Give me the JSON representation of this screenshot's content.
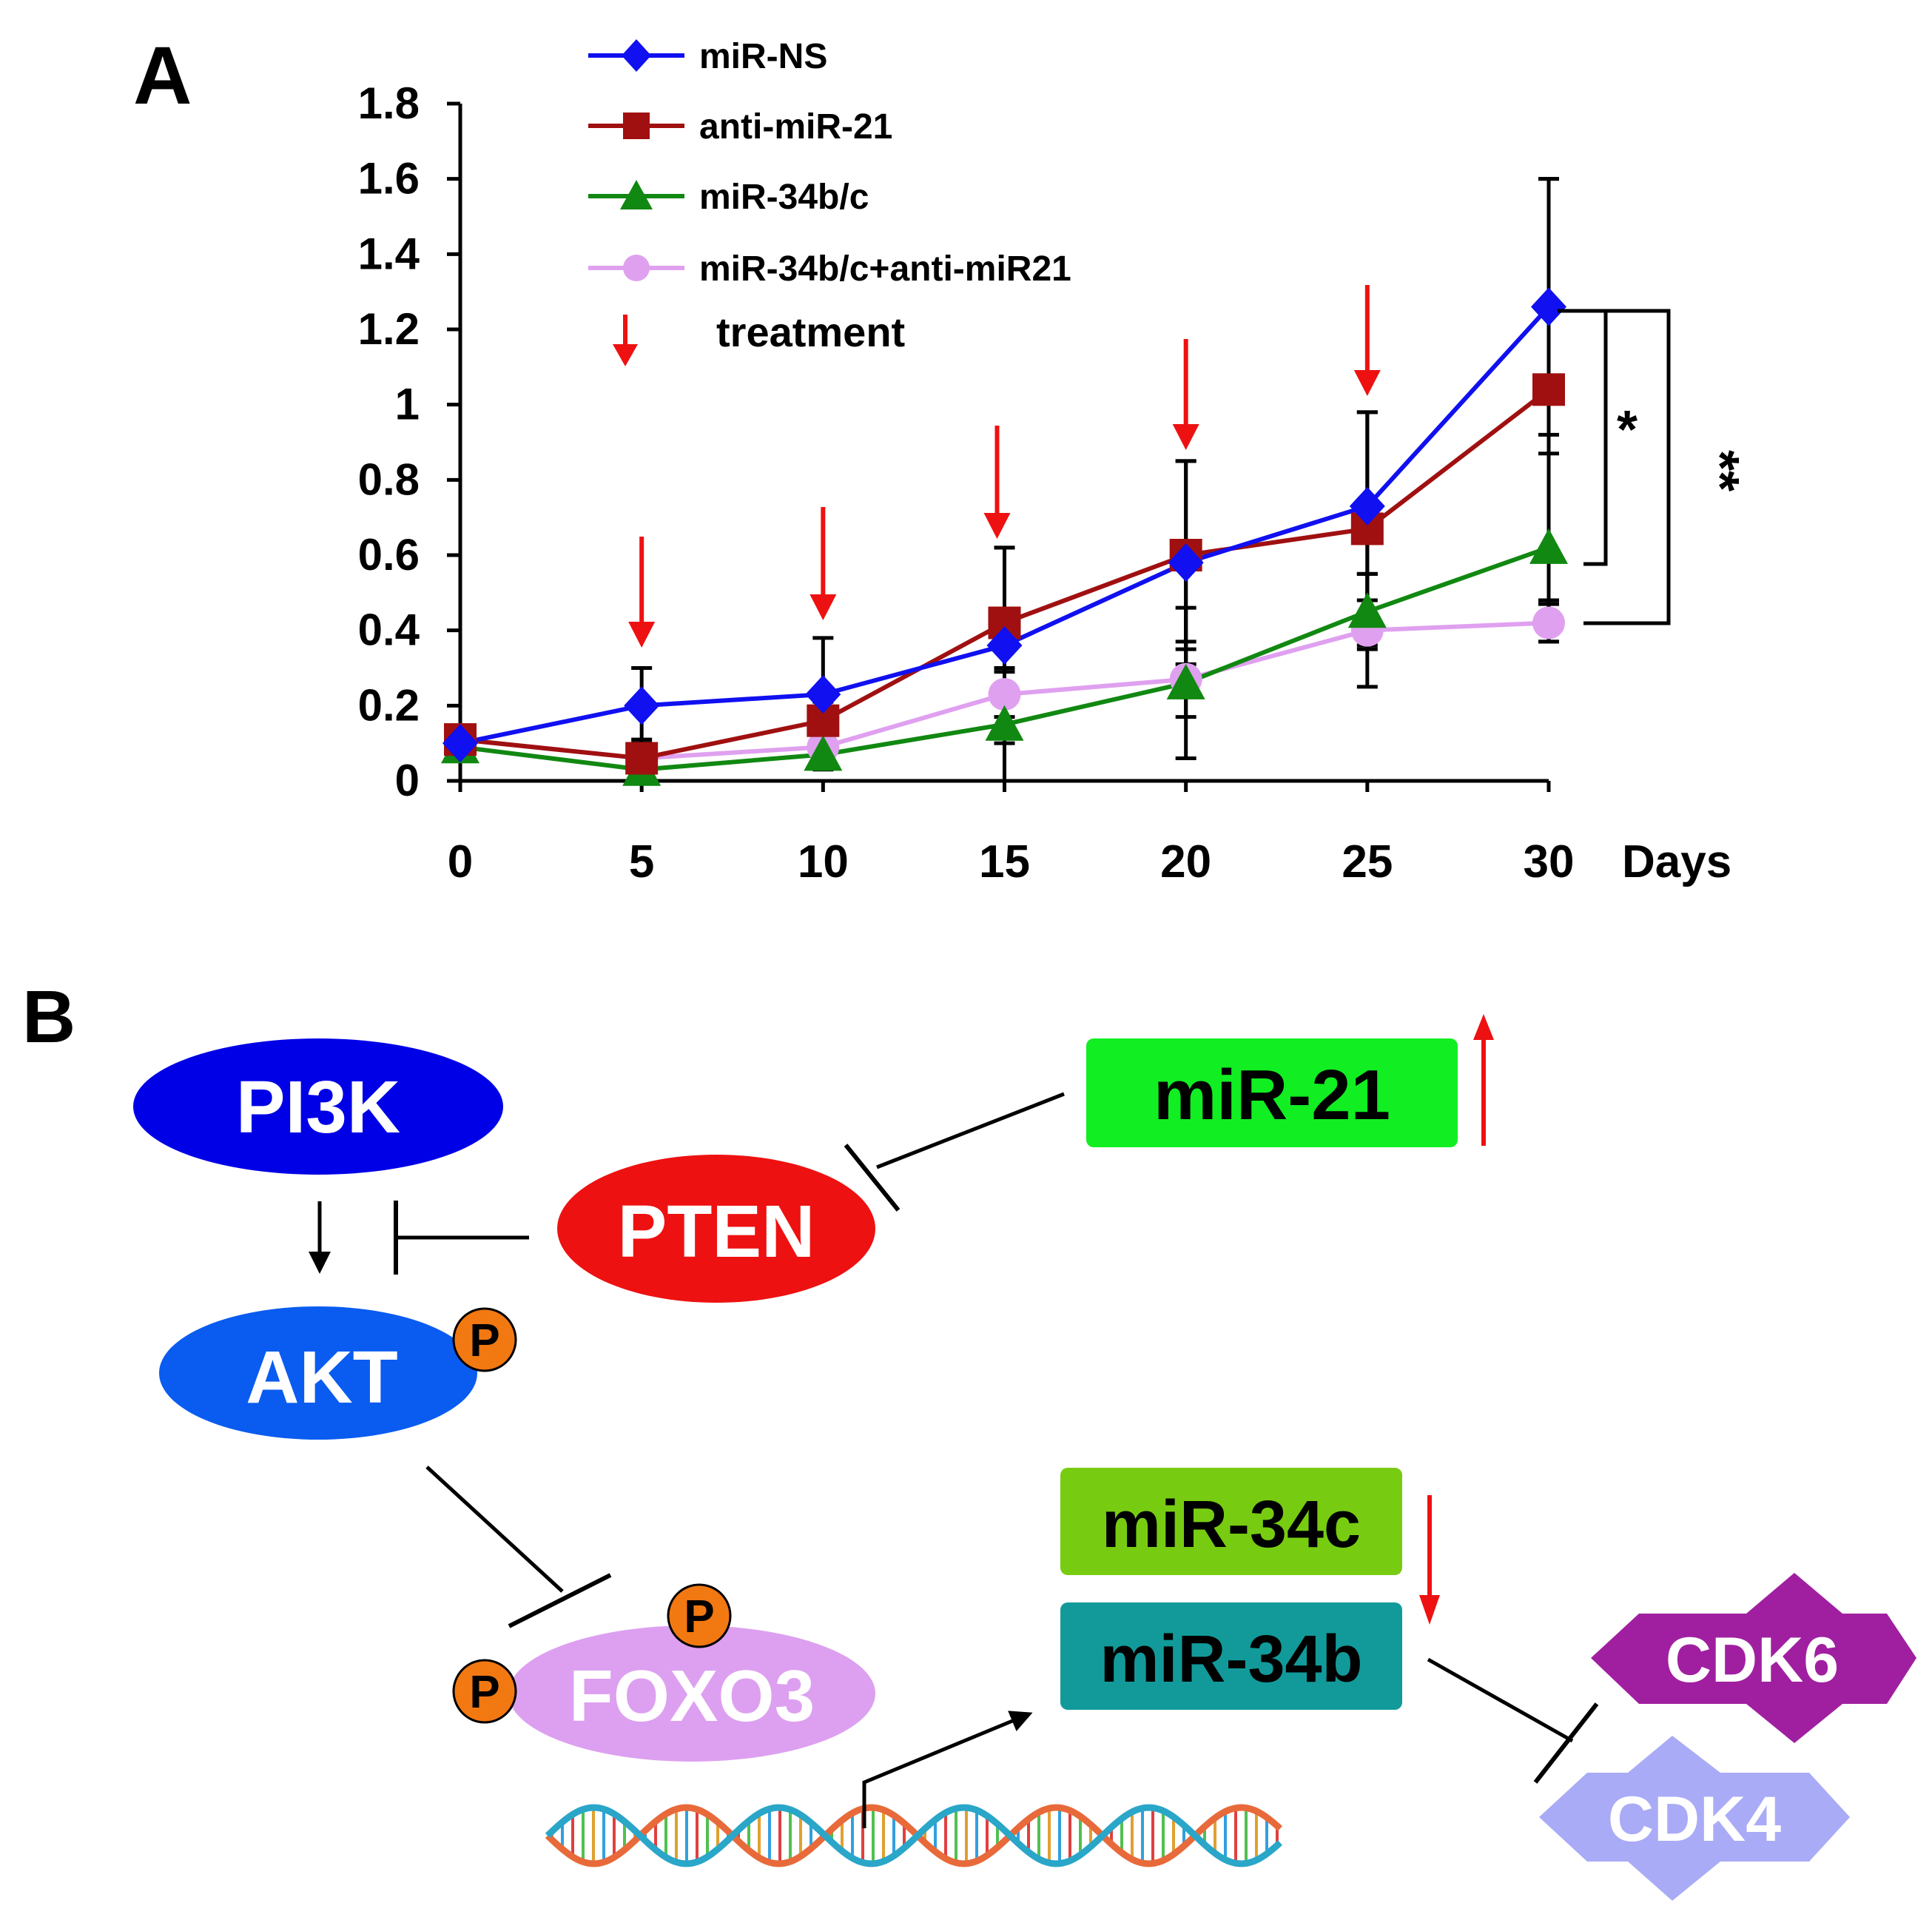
{
  "colors": {
    "miR_NS": "#1010F0",
    "anti_miR_21": "#A01010",
    "miR_34bc": "#118811",
    "combo": "#E0A0F0",
    "treatment_arrow": "#EE1111",
    "black": "#000000"
  },
  "panelA": {
    "label": "A",
    "treatment_label": "treatment",
    "sig1": "*",
    "sig2": "**",
    "x_unit": "Days"
  },
  "chart_data": {
    "type": "line",
    "x": [
      0,
      5,
      10,
      15,
      20,
      25,
      30
    ],
    "xlabel": "Days",
    "ylabel": "",
    "ylim": [
      0,
      1.8
    ],
    "yticks": [
      "0",
      "0.2",
      "0.4",
      "0.6",
      "0.8",
      "1",
      "1.2",
      "1.4",
      "1.6",
      "1.8"
    ],
    "xticks": [
      "0",
      "5",
      "10",
      "15",
      "20",
      "25",
      "30"
    ],
    "treatment_days": [
      5,
      10,
      15,
      20,
      25
    ],
    "legend_position": "top",
    "series": [
      {
        "name": "miR-NS",
        "marker": "diamond",
        "color": "#1010F0",
        "values": [
          0.1,
          0.2,
          0.23,
          0.36,
          0.58,
          0.73,
          1.26
        ],
        "errors": [
          0.03,
          0.1,
          0.15,
          0.26,
          0.27,
          0.25,
          0.34
        ]
      },
      {
        "name": "anti-miR-21",
        "marker": "square",
        "color": "#A01010",
        "values": [
          0.11,
          0.06,
          0.16,
          0.42,
          0.6,
          0.67,
          1.04
        ],
        "errors": [
          0.03,
          0.05,
          0.05,
          0.2,
          0.25,
          0.31,
          0.56
        ]
      },
      {
        "name": "miR-34b/c",
        "marker": "triangle",
        "color": "#118811",
        "values": [
          0.09,
          0.03,
          0.07,
          0.15,
          0.26,
          0.45,
          0.62
        ],
        "errors": [
          0.02,
          0.03,
          0.04,
          0.15,
          0.2,
          0.1,
          0.25
        ]
      },
      {
        "name": "miR-34b/c+anti-miR21",
        "marker": "circle",
        "color": "#E0A0F0",
        "values": [
          0.11,
          0.06,
          0.09,
          0.23,
          0.27,
          0.4,
          0.42
        ],
        "errors": [
          0.02,
          0.03,
          0.03,
          0.06,
          0.1,
          0.15,
          0.05
        ]
      }
    ]
  },
  "panelB": {
    "label": "B",
    "pi3k": "PI3K",
    "akt": "AKT",
    "pten": "PTEN",
    "foxo3": "FOXO3",
    "mir21": "miR-21",
    "mir34c": "miR-34c",
    "mir34b": "miR-34b",
    "cdk6": "CDK6",
    "cdk4": "CDK4",
    "phospho": "P"
  }
}
